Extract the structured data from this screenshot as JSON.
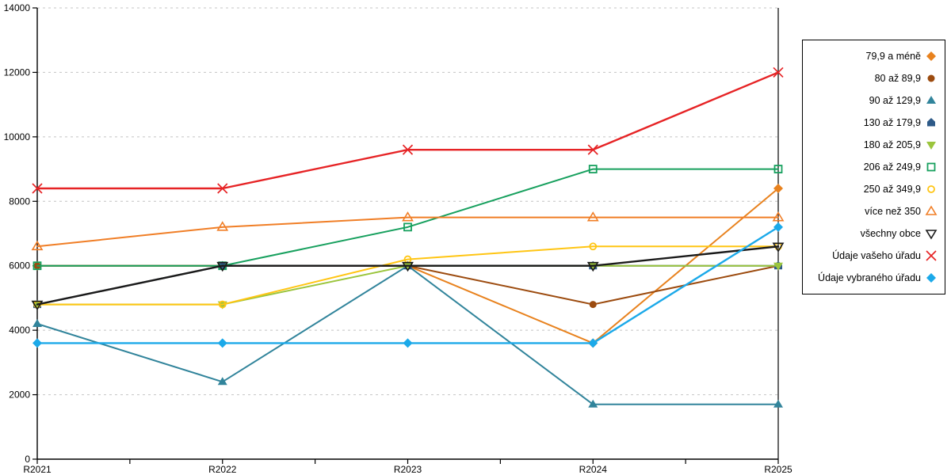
{
  "chart_data": {
    "type": "line",
    "title": "",
    "xlabel": "",
    "ylabel": "",
    "categories": [
      "R2021",
      "R2022",
      "R2023",
      "R2024",
      "R2025"
    ],
    "ylim": [
      0,
      14000
    ],
    "y_ticks": [
      0,
      2000,
      4000,
      6000,
      8000,
      10000,
      12000,
      14000
    ],
    "grid": "dashed-horizontal",
    "legend_position": "right",
    "series": [
      {
        "name": "79,9 a méně",
        "marker": "diamond-filled",
        "color": "#E8821E",
        "line_width": 2,
        "values": [
          6000,
          6000,
          6000,
          3600,
          8400
        ]
      },
      {
        "name": "80 až 89,9",
        "marker": "circle-filled",
        "color": "#9C4B0F",
        "line_width": 2,
        "values": [
          6000,
          6000,
          6000,
          4800,
          6000
        ]
      },
      {
        "name": "90 až 129,9",
        "marker": "triangle-up-filled",
        "color": "#31849B",
        "line_width": 2,
        "values": [
          4200,
          2400,
          6000,
          1700,
          1700
        ]
      },
      {
        "name": "130 až 179,9",
        "marker": "pentagon-filled",
        "color": "#2E5A88",
        "line_width": 2,
        "values": [
          4800,
          6000,
          6000,
          6000,
          6000
        ]
      },
      {
        "name": "180 až 205,9",
        "marker": "triangle-down-filled",
        "color": "#9BC53D",
        "line_width": 2,
        "values": [
          4800,
          4800,
          6000,
          6000,
          6000
        ]
      },
      {
        "name": "206 až 249,9",
        "marker": "square-open",
        "color": "#17A05E",
        "line_width": 2,
        "values": [
          6000,
          6000,
          7200,
          9000,
          9000
        ]
      },
      {
        "name": "250 až 349,9",
        "marker": "circle-open",
        "color": "#FFC513",
        "line_width": 2,
        "values": [
          4800,
          4800,
          6200,
          6600,
          6600
        ]
      },
      {
        "name": "více než 350",
        "marker": "triangle-up-open",
        "color": "#F07E26",
        "line_width": 2,
        "values": [
          6600,
          7200,
          7500,
          7500,
          7500
        ]
      },
      {
        "name": "všechny obce",
        "marker": "triangle-down-open",
        "color": "#1A1A1A",
        "line_width": 2.4,
        "values": [
          4800,
          6000,
          6000,
          6000,
          6600
        ]
      },
      {
        "name": "Údaje vašeho úřadu",
        "marker": "x-cross",
        "color": "#E62325",
        "line_width": 2.4,
        "values": [
          8400,
          8400,
          9600,
          9600,
          12000
        ]
      },
      {
        "name": "Údaje vybraného úřadu",
        "marker": "diamond-filled",
        "color": "#1BA9E9",
        "line_width": 2.4,
        "values": [
          3600,
          3600,
          3600,
          3600,
          7200
        ]
      }
    ]
  },
  "colors": {
    "background": "#FFFFFF",
    "grid": "#C4C4C4",
    "axis": "#000000",
    "legend_border": "#000000",
    "text": "#000000"
  }
}
